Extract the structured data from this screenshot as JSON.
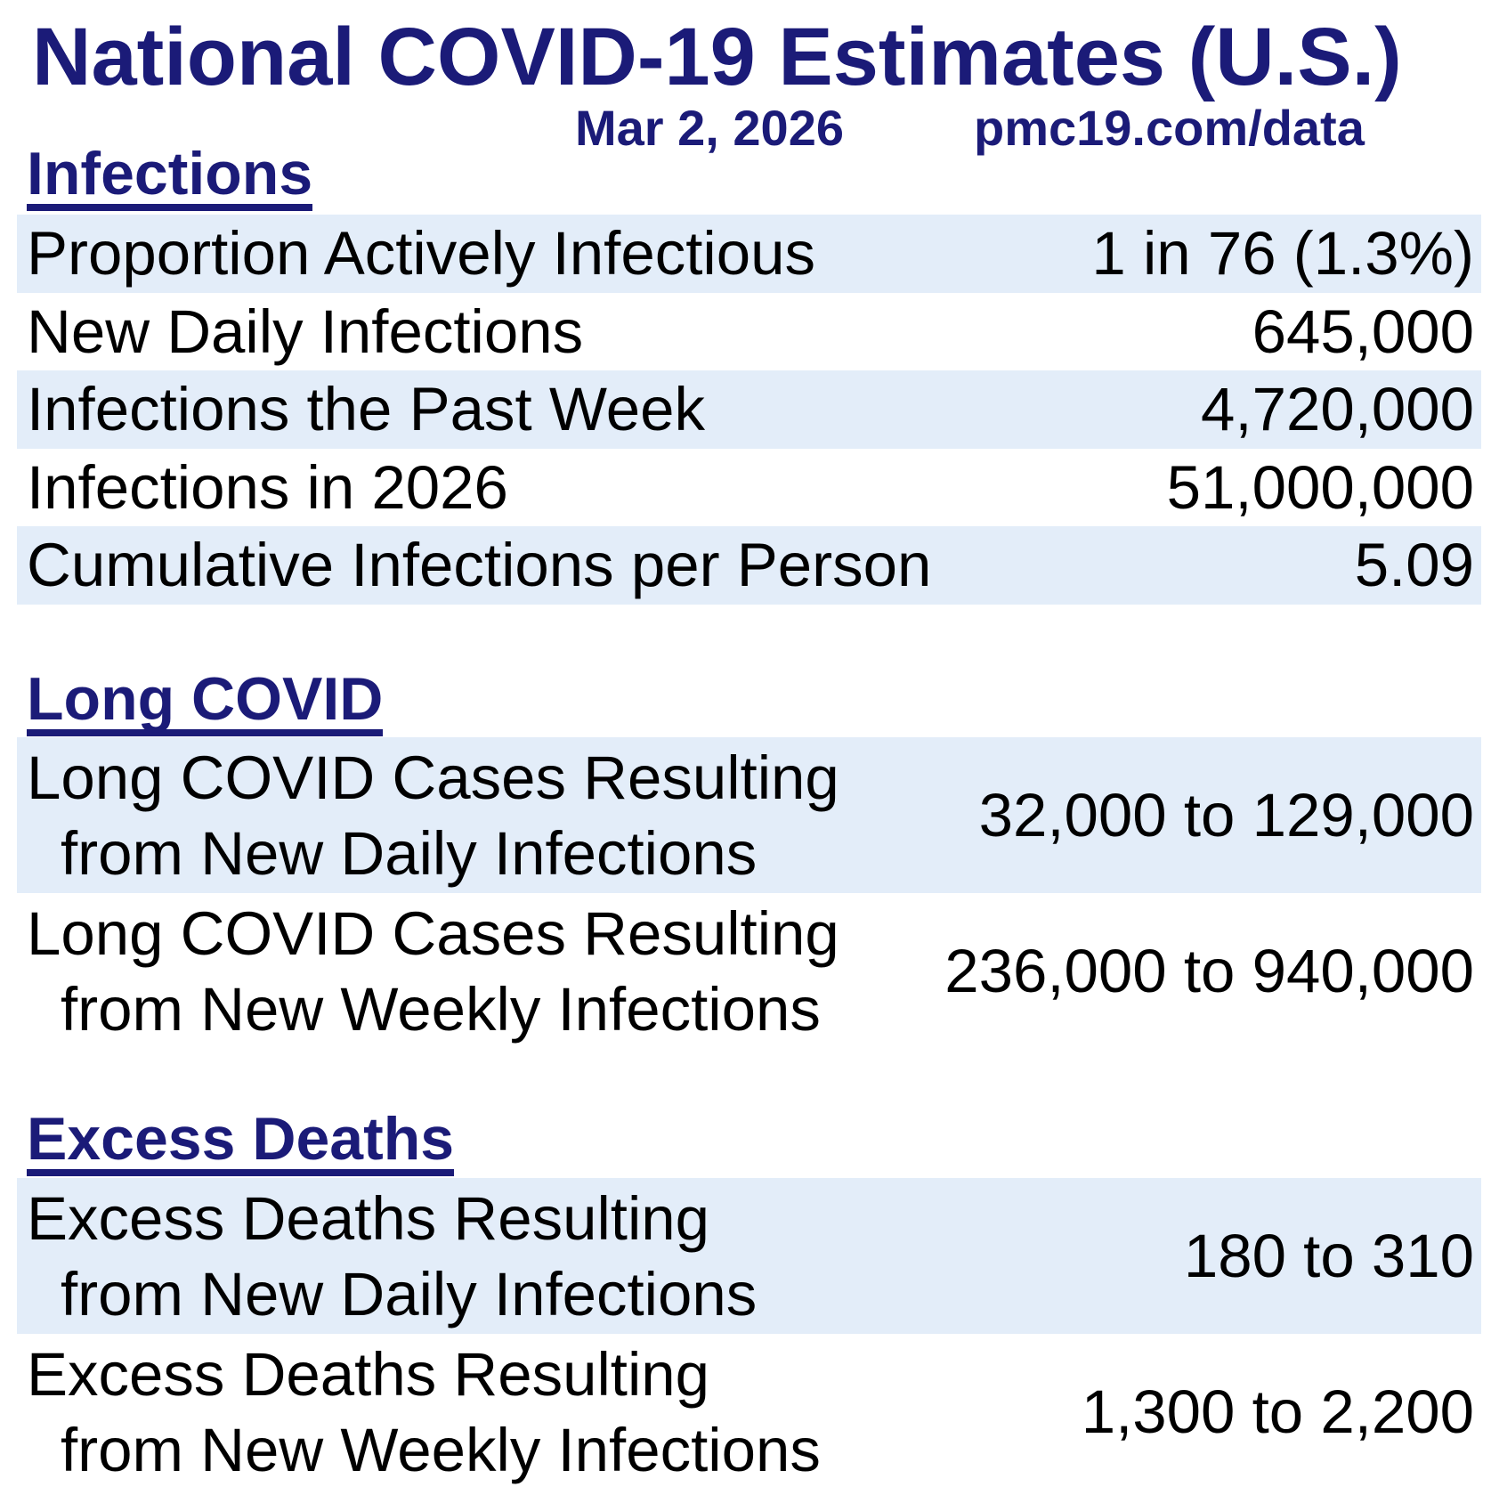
{
  "header": {
    "title": "National COVID-19 Estimates (U.S.)",
    "date": "Mar 2, 2026",
    "source": "pmc19.com/data"
  },
  "colors": {
    "navy": "#1b1b78",
    "row_bg": "#e3edf9",
    "text": "#000000"
  },
  "chart_data": {
    "type": "table",
    "title": "National COVID-19 Estimates (U.S.)",
    "subtitle_date": "Mar 2, 2026",
    "subtitle_source": "pmc19.com/data",
    "sections": [
      {
        "heading": "Infections",
        "rows": [
          {
            "label": "Proportion Actively Infectious",
            "label_lines": {
              "l1": "Proportion Actively Infectious"
            },
            "value": "1 in 76 (1.3%)",
            "highlighted": true
          },
          {
            "label": "New Daily Infections",
            "label_lines": {
              "l1": "New Daily Infections"
            },
            "value": "645,000",
            "highlighted": false
          },
          {
            "label": "Infections the Past Week",
            "label_lines": {
              "l1": "Infections the Past Week"
            },
            "value": "4,720,000",
            "highlighted": true
          },
          {
            "label": "Infections in 2026",
            "label_lines": {
              "l1": "Infections in 2026"
            },
            "value": "51,000,000",
            "highlighted": false
          },
          {
            "label": "Cumulative Infections per Person",
            "label_lines": {
              "l1": "Cumulative Infections per Person"
            },
            "value": "5.09",
            "highlighted": true
          }
        ]
      },
      {
        "heading": "Long COVID",
        "rows": [
          {
            "label": "Long COVID Cases Resulting from New Daily Infections",
            "label_lines": {
              "l1": "Long COVID Cases Resulting",
              "l2": "from New Daily Infections"
            },
            "value": "32,000 to 129,000",
            "highlighted": true
          },
          {
            "label": "Long COVID Cases Resulting from New Weekly Infections",
            "label_lines": {
              "l1": "Long COVID Cases Resulting",
              "l2": "from New Weekly Infections"
            },
            "value": "236,000 to 940,000",
            "highlighted": false
          }
        ]
      },
      {
        "heading": "Excess Deaths",
        "rows": [
          {
            "label": "Excess Deaths Resulting from New Daily Infections",
            "label_lines": {
              "l1": "Excess Deaths Resulting",
              "l2": "from New Daily Infections"
            },
            "value": "180 to 310",
            "highlighted": true
          },
          {
            "label": "Excess Deaths Resulting from New Weekly Infections",
            "label_lines": {
              "l1": "Excess Deaths Resulting",
              "l2": "from New Weekly Infections"
            },
            "value": "1,300 to 2,200",
            "highlighted": false
          }
        ]
      }
    ]
  }
}
